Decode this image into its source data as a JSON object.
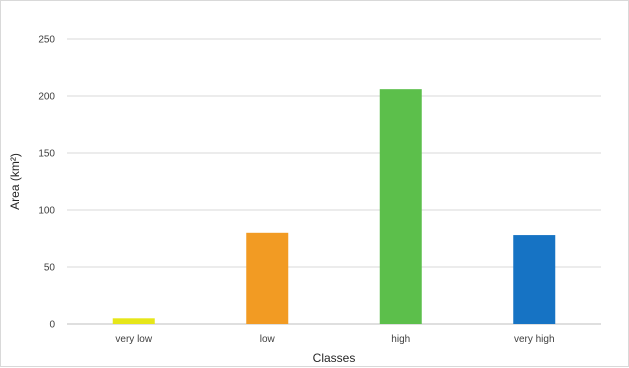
{
  "chart_data": {
    "type": "bar",
    "title": "",
    "xlabel": "Classes",
    "ylabel": "Area (km²)",
    "categories": [
      "very low",
      "low",
      "high",
      "very high"
    ],
    "values": [
      5,
      80,
      206,
      78
    ],
    "bar_colors": [
      "#e6e619",
      "#f29b23",
      "#5cbf4b",
      "#1673c4"
    ],
    "ylim": [
      0,
      250
    ],
    "yticks": [
      0,
      50,
      100,
      150,
      200,
      250
    ],
    "grid": true,
    "legend": "none"
  },
  "colors": {
    "gridline": "#d9d9d9",
    "axis": "#bfbfbf",
    "text": "#404040"
  }
}
